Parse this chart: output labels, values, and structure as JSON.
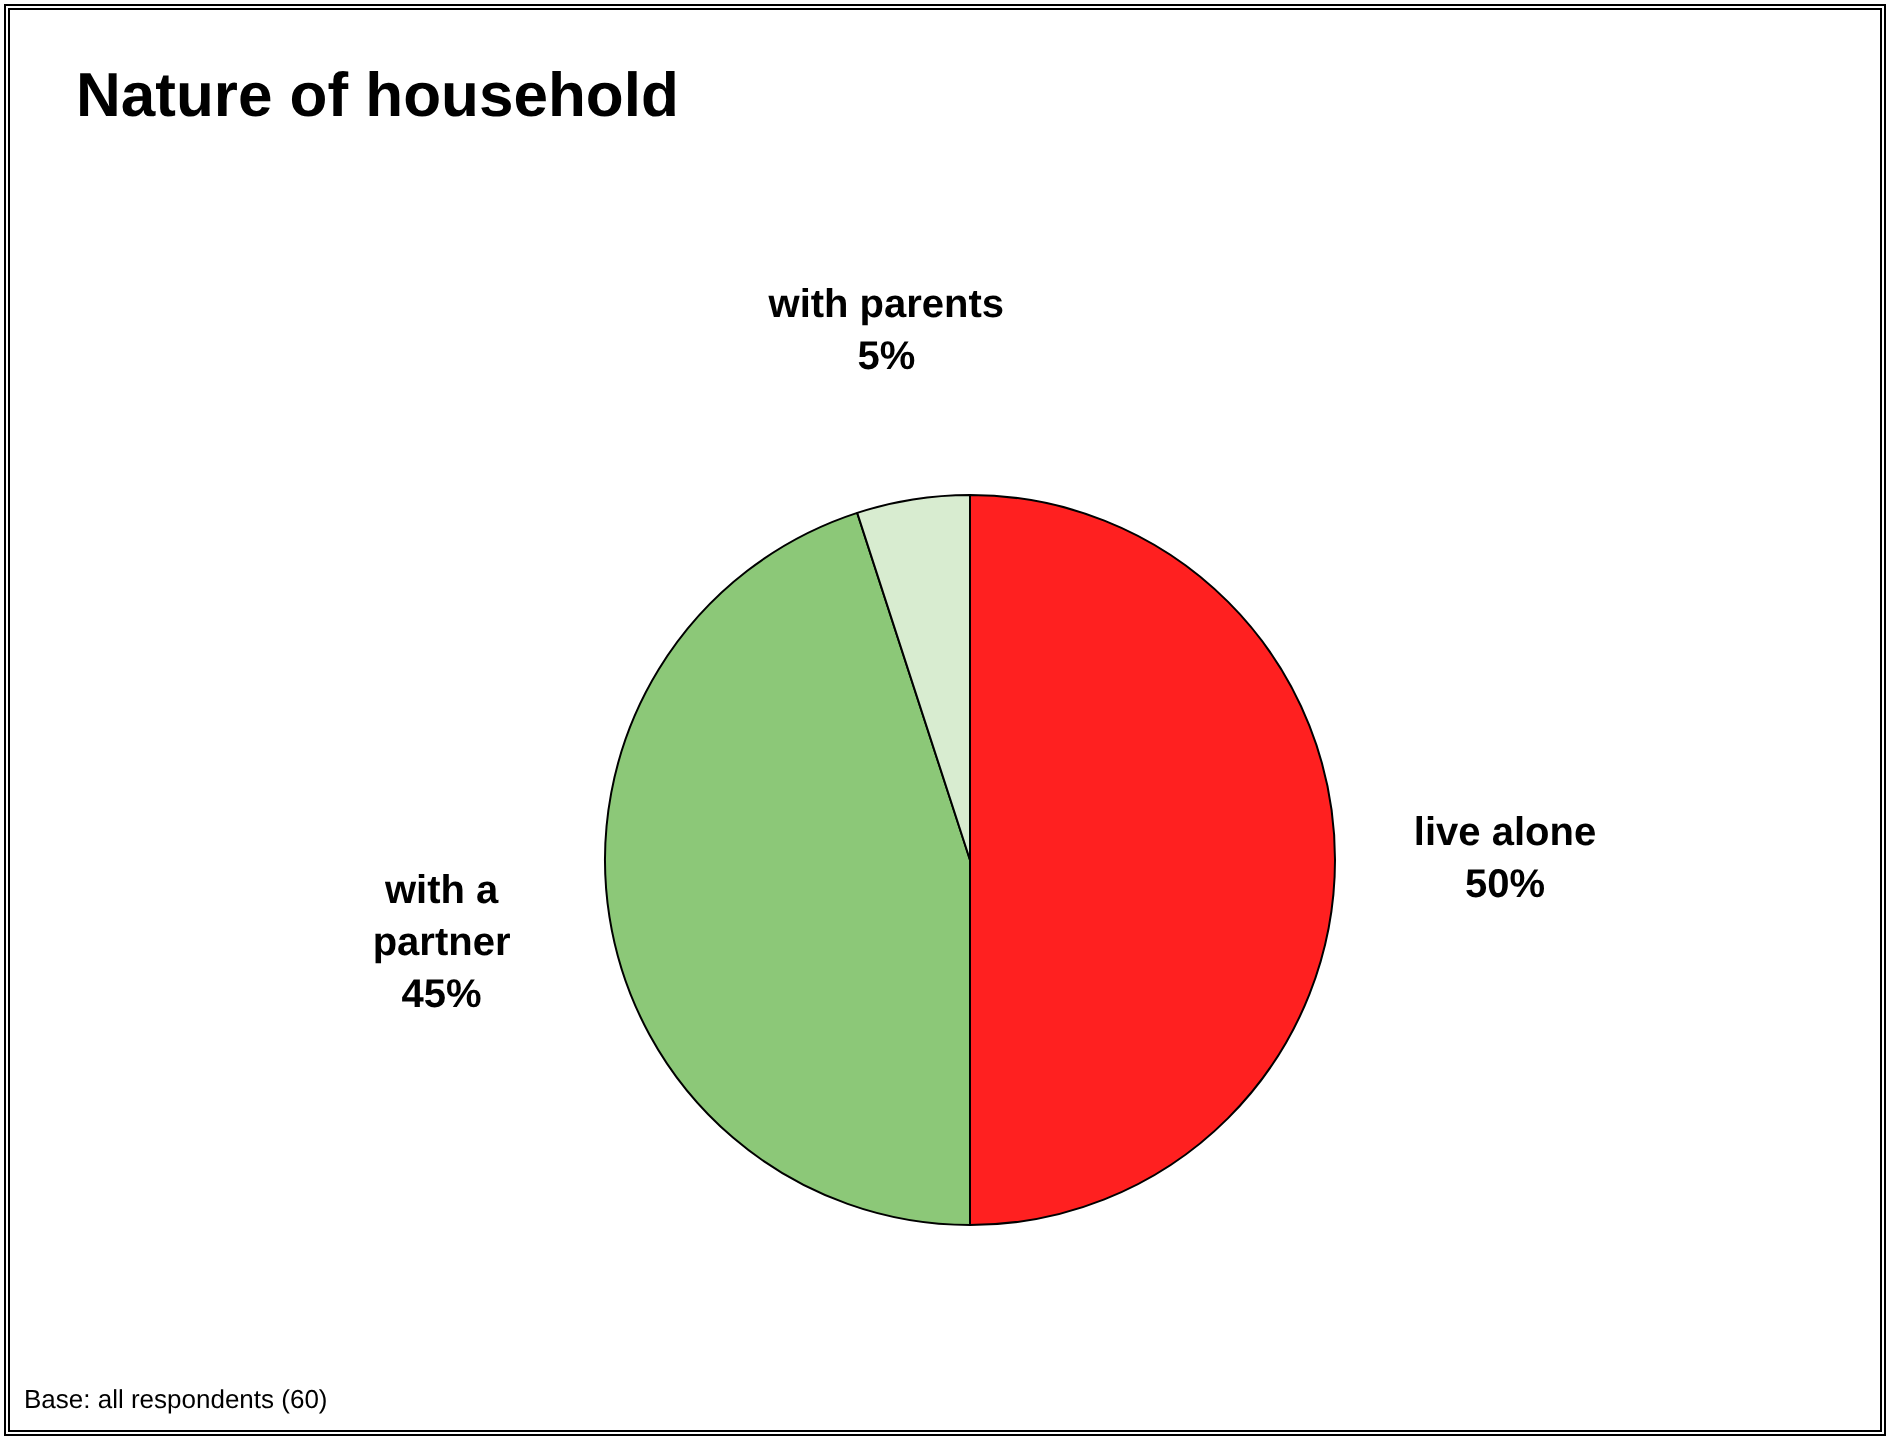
{
  "chart_data": {
    "type": "pie",
    "title": "Nature of household",
    "categories": [
      "live alone",
      "with a partner",
      "with parents"
    ],
    "values": [
      50,
      45,
      5
    ],
    "colors": [
      "#ff2020",
      "#8cc878",
      "#d8ecd0"
    ],
    "value_labels": [
      "50%",
      "45%",
      "5%"
    ],
    "legend": false,
    "annotations": [
      "Base: all respondents (60)"
    ]
  }
}
